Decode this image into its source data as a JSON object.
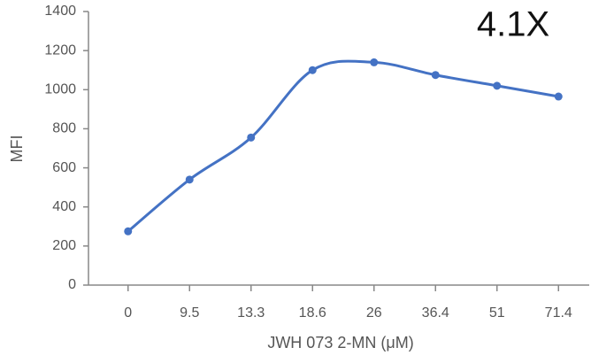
{
  "chart_data": {
    "type": "line",
    "annotation": "4.1X",
    "x_label": "JWH 073 2-MN (μM)",
    "y_label": "MFI",
    "categories": [
      "0",
      "9.5",
      "13.3",
      "18.6",
      "26",
      "36.4",
      "51",
      "71.4"
    ],
    "series": [
      {
        "color": "#4472c4",
        "values": [
          275,
          540,
          755,
          1100,
          1140,
          1075,
          1020,
          965
        ]
      }
    ],
    "ylim": [
      0,
      1400
    ],
    "yticks": [
      0,
      200,
      400,
      600,
      800,
      1000,
      1200,
      1400
    ],
    "smooth": true
  }
}
